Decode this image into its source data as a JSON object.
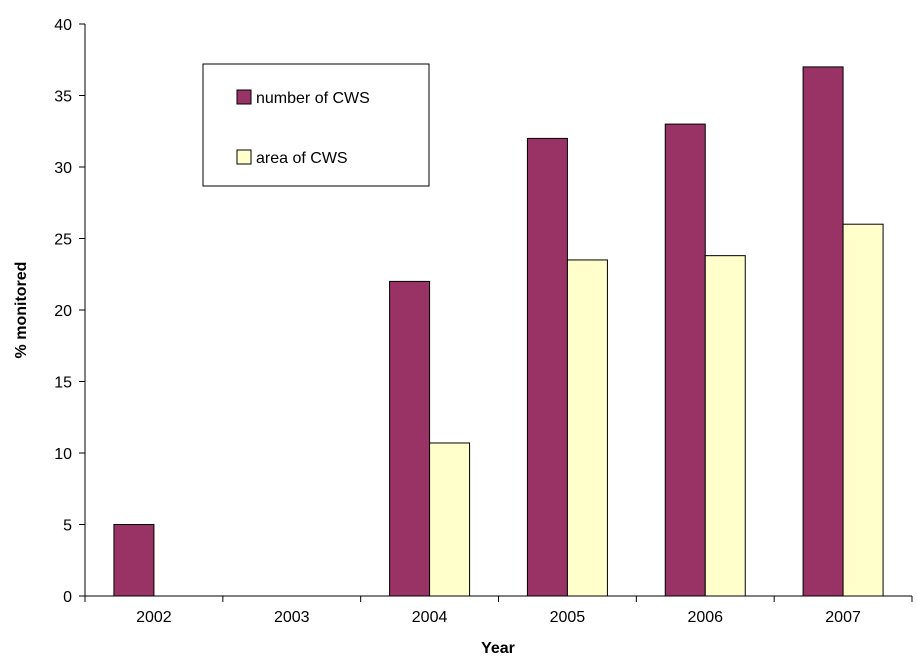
{
  "chart_data": {
    "type": "bar",
    "title": "",
    "xlabel": "Year",
    "ylabel": "% monitored",
    "categories": [
      "2002",
      "2003",
      "2004",
      "2005",
      "2006",
      "2007"
    ],
    "series": [
      {
        "name": "number of CWS",
        "color": "#993366",
        "values": [
          5,
          null,
          22,
          32,
          33,
          37
        ]
      },
      {
        "name": "area of CWS",
        "color": "#ffffcc",
        "values": [
          null,
          null,
          10.7,
          23.5,
          23.8,
          26
        ]
      }
    ],
    "ylim": [
      0,
      40
    ],
    "yticks": [
      0,
      5,
      10,
      15,
      20,
      25,
      30,
      35,
      40
    ],
    "grid": false,
    "legend_position": "top-left inside plot"
  }
}
